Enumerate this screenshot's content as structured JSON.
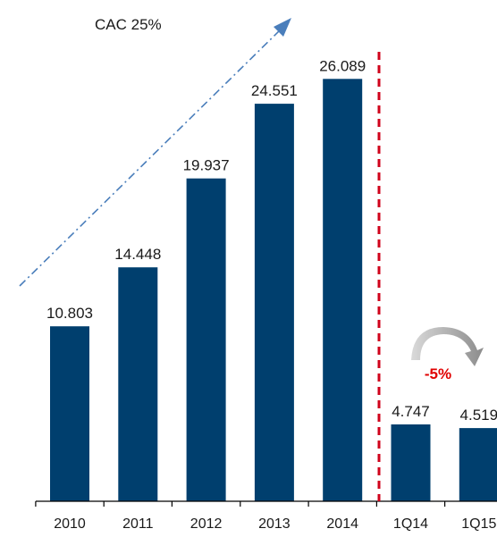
{
  "chart_data": {
    "type": "bar",
    "categories": [
      "2010",
      "2011",
      "2012",
      "2013",
      "2014",
      "1Q14",
      "1Q15"
    ],
    "values": [
      10.803,
      14.448,
      19.937,
      24.551,
      26.089,
      4.747,
      4.519
    ],
    "value_labels": [
      "10.803",
      "14.448",
      "19.937",
      "24.551",
      "26.089",
      "4.747",
      "4.519"
    ],
    "title": "",
    "xlabel": "",
    "ylabel": "",
    "ylim": [
      0,
      30
    ],
    "grid": false,
    "annotations": {
      "cagr": "CAC 25%",
      "change": "-5%"
    },
    "colors": {
      "bar": "#003F6E",
      "divider": "#D0021B",
      "trend": "#4A7EBB",
      "change_text": "#E00000",
      "arc": "#BFBFBF"
    }
  }
}
